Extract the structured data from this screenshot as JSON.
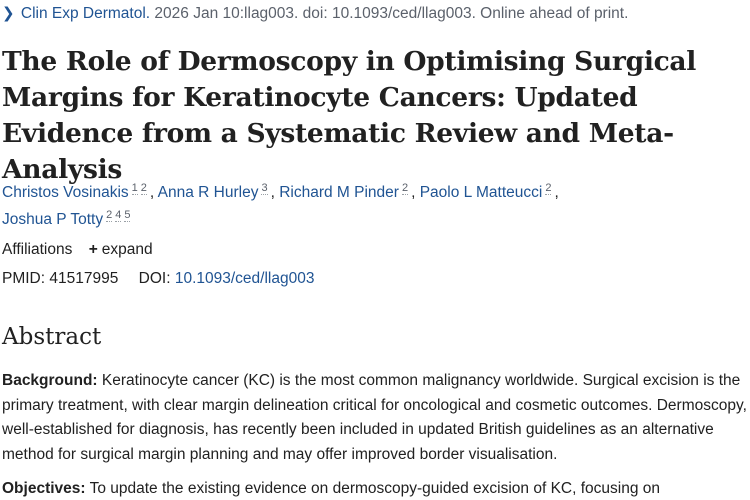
{
  "citation": {
    "chevron_icon": "chevron-right-icon",
    "journal": "Clin Exp Dermatol.",
    "details": "2026 Jan 10:llag003. doi: 10.1093/ced/llag003. Online ahead of print."
  },
  "title": "The Role of Dermoscopy in Optimising Surgical Margins for Keratinocyte Cancers: Updated Evidence from a Systematic Review and Meta-Analysis",
  "authors": [
    {
      "name": "Christos Vosinakis",
      "affils": [
        "1",
        "2"
      ]
    },
    {
      "name": "Anna R Hurley",
      "affils": [
        "3"
      ]
    },
    {
      "name": "Richard M Pinder",
      "affils": [
        "2"
      ]
    },
    {
      "name": "Paolo L Matteucci",
      "affils": [
        "2"
      ]
    },
    {
      "name": "Joshua P Totty",
      "affils": [
        "2",
        "4",
        "5"
      ]
    }
  ],
  "affiliations": {
    "label": "Affiliations",
    "expand_icon": "plus-icon",
    "expand_label": "expand"
  },
  "ids": {
    "pmid_label": "PMID:",
    "pmid": "41517995",
    "doi_label": "DOI:",
    "doi": "10.1093/ced/llag003"
  },
  "abstract": {
    "heading": "Abstract",
    "background_label": "Background:",
    "background_text": "Keratinocyte cancer (KC) is the most common malignancy worldwide. Surgical excision is the primary treatment, with clear margin delineation critical for oncological and cosmetic outcomes. Dermoscopy, well-established for diagnosis, has recently been included in updated British guidelines as an alternative method for surgical margin planning and may offer improved border visualisation.",
    "objectives_label": "Objectives:",
    "objectives_text": "To update the existing evidence on dermoscopy-guided excision of KC, focusing on"
  },
  "colors": {
    "link": "#205493",
    "text": "#212121",
    "muted": "#5b616b"
  }
}
